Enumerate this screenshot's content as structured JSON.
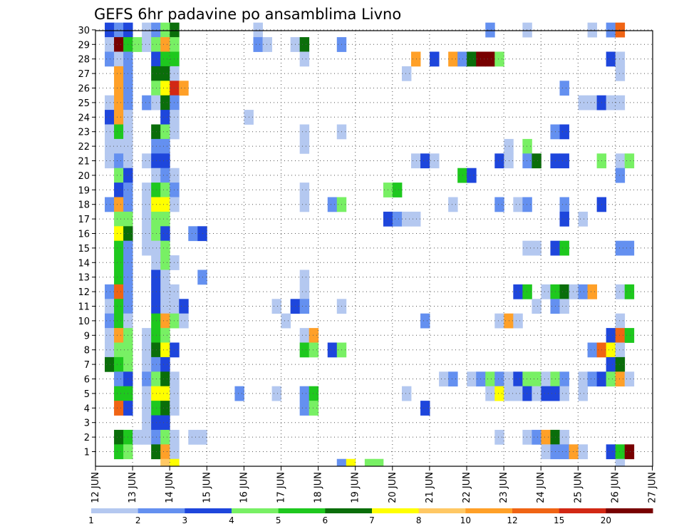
{
  "chart_data": {
    "type": "heatmap",
    "title": "GEFS 6hr padavine po ansamblima Livno",
    "xlabel": "",
    "ylabel": "",
    "x_ticks": [
      "12 JUN",
      "13 JUN",
      "14 JUN",
      "15 JUN",
      "16 JUN",
      "17 JUN",
      "18 JUN",
      "19 JUN",
      "20 JUN",
      "21 JUN",
      "22 JUN",
      "23 JUN",
      "24 JUN",
      "25 JUN",
      "26 JUN",
      "27 JUN"
    ],
    "y_ticks": [
      "1",
      "2",
      "3",
      "4",
      "5",
      "6",
      "7",
      "8",
      "9",
      "10",
      "11",
      "12",
      "13",
      "14",
      "15",
      "16",
      "17",
      "18",
      "19",
      "20",
      "21",
      "22",
      "23",
      "24",
      "25",
      "26",
      "27",
      "28",
      "29",
      "30"
    ],
    "grid": true,
    "legend_placement": "bottom",
    "legend": {
      "labels": [
        "1",
        "2",
        "3",
        "4",
        "5",
        "6",
        "7",
        "8",
        "10",
        "12",
        "15",
        "20"
      ],
      "colors": [
        "#b4c8f0",
        "#6490f0",
        "#1e46dc",
        "#78f064",
        "#1ec81e",
        "#0a6e0a",
        "#ffff00",
        "#ffc864",
        "#ffa028",
        "#f06414",
        "#d22814",
        "#780000"
      ]
    },
    "cells_note": "each cell = [x (6-hour step index from 12 JUN 00Z), y (member 1-30), category index 0-11]",
    "cells": [
      [
        1,
        30,
        2
      ],
      [
        2,
        30,
        1
      ],
      [
        3,
        30,
        2
      ],
      [
        5,
        30,
        0
      ],
      [
        6,
        30,
        1
      ],
      [
        7,
        30,
        3
      ],
      [
        8,
        30,
        5
      ],
      [
        17,
        30,
        0
      ],
      [
        42,
        30,
        1
      ],
      [
        46,
        30,
        0
      ],
      [
        53,
        30,
        0
      ],
      [
        55,
        30,
        1
      ],
      [
        56,
        30,
        9
      ],
      [
        1,
        29,
        0
      ],
      [
        2,
        29,
        11
      ],
      [
        3,
        29,
        4
      ],
      [
        4,
        29,
        3
      ],
      [
        5,
        29,
        0
      ],
      [
        6,
        29,
        3
      ],
      [
        7,
        29,
        8
      ],
      [
        8,
        29,
        3
      ],
      [
        17,
        29,
        1
      ],
      [
        18,
        29,
        0
      ],
      [
        21,
        29,
        0
      ],
      [
        22,
        29,
        5
      ],
      [
        26,
        29,
        1
      ],
      [
        1,
        28,
        1
      ],
      [
        2,
        28,
        0
      ],
      [
        3,
        28,
        1
      ],
      [
        6,
        28,
        2
      ],
      [
        7,
        28,
        4
      ],
      [
        8,
        28,
        4
      ],
      [
        22,
        28,
        0
      ],
      [
        34,
        28,
        8
      ],
      [
        36,
        28,
        2
      ],
      [
        38,
        28,
        8
      ],
      [
        39,
        28,
        1
      ],
      [
        40,
        28,
        5
      ],
      [
        41,
        28,
        11
      ],
      [
        42,
        28,
        11
      ],
      [
        43,
        28,
        3
      ],
      [
        55,
        28,
        2
      ],
      [
        56,
        28,
        0
      ],
      [
        2,
        27,
        8
      ],
      [
        3,
        27,
        1
      ],
      [
        6,
        27,
        5
      ],
      [
        7,
        27,
        5
      ],
      [
        8,
        27,
        0
      ],
      [
        33,
        27,
        0
      ],
      [
        56,
        27,
        0
      ],
      [
        2,
        26,
        8
      ],
      [
        3,
        26,
        1
      ],
      [
        6,
        26,
        3
      ],
      [
        7,
        26,
        6
      ],
      [
        8,
        26,
        10
      ],
      [
        9,
        26,
        8
      ],
      [
        50,
        26,
        1
      ],
      [
        1,
        25,
        0
      ],
      [
        2,
        25,
        8
      ],
      [
        3,
        25,
        1
      ],
      [
        5,
        25,
        1
      ],
      [
        6,
        25,
        0
      ],
      [
        7,
        25,
        5
      ],
      [
        8,
        25,
        1
      ],
      [
        52,
        25,
        0
      ],
      [
        53,
        25,
        0
      ],
      [
        54,
        25,
        2
      ],
      [
        55,
        25,
        0
      ],
      [
        56,
        25,
        0
      ],
      [
        1,
        24,
        2
      ],
      [
        2,
        24,
        8
      ],
      [
        3,
        24,
        0
      ],
      [
        7,
        24,
        2
      ],
      [
        8,
        24,
        0
      ],
      [
        16,
        24,
        0
      ],
      [
        1,
        23,
        0
      ],
      [
        2,
        23,
        4
      ],
      [
        3,
        23,
        0
      ],
      [
        6,
        23,
        5
      ],
      [
        7,
        23,
        3
      ],
      [
        8,
        23,
        0
      ],
      [
        22,
        23,
        0
      ],
      [
        26,
        23,
        0
      ],
      [
        49,
        23,
        1
      ],
      [
        50,
        23,
        2
      ],
      [
        1,
        22,
        0
      ],
      [
        2,
        22,
        0
      ],
      [
        3,
        22,
        0
      ],
      [
        6,
        22,
        1
      ],
      [
        7,
        22,
        1
      ],
      [
        22,
        22,
        0
      ],
      [
        44,
        22,
        0
      ],
      [
        46,
        22,
        3
      ],
      [
        1,
        21,
        0
      ],
      [
        2,
        21,
        1
      ],
      [
        3,
        21,
        0
      ],
      [
        5,
        21,
        0
      ],
      [
        6,
        21,
        2
      ],
      [
        7,
        21,
        2
      ],
      [
        34,
        21,
        0
      ],
      [
        35,
        21,
        2
      ],
      [
        36,
        21,
        0
      ],
      [
        43,
        21,
        2
      ],
      [
        44,
        21,
        0
      ],
      [
        46,
        21,
        1
      ],
      [
        47,
        21,
        5
      ],
      [
        49,
        21,
        2
      ],
      [
        50,
        21,
        2
      ],
      [
        54,
        21,
        3
      ],
      [
        56,
        21,
        0
      ],
      [
        57,
        21,
        3
      ],
      [
        2,
        20,
        3
      ],
      [
        3,
        20,
        2
      ],
      [
        6,
        20,
        0
      ],
      [
        7,
        20,
        1
      ],
      [
        8,
        20,
        0
      ],
      [
        39,
        20,
        4
      ],
      [
        40,
        20,
        2
      ],
      [
        56,
        20,
        1
      ],
      [
        2,
        19,
        2
      ],
      [
        3,
        19,
        1
      ],
      [
        5,
        19,
        0
      ],
      [
        6,
        19,
        4
      ],
      [
        7,
        19,
        3
      ],
      [
        8,
        19,
        1
      ],
      [
        22,
        19,
        0
      ],
      [
        31,
        19,
        3
      ],
      [
        32,
        19,
        4
      ],
      [
        1,
        18,
        1
      ],
      [
        2,
        18,
        8
      ],
      [
        3,
        18,
        1
      ],
      [
        5,
        18,
        0
      ],
      [
        6,
        18,
        6
      ],
      [
        7,
        18,
        6
      ],
      [
        8,
        18,
        0
      ],
      [
        22,
        18,
        0
      ],
      [
        25,
        18,
        1
      ],
      [
        26,
        18,
        3
      ],
      [
        38,
        18,
        0
      ],
      [
        43,
        18,
        1
      ],
      [
        45,
        18,
        0
      ],
      [
        46,
        18,
        1
      ],
      [
        50,
        18,
        1
      ],
      [
        54,
        18,
        2
      ],
      [
        2,
        17,
        3
      ],
      [
        3,
        17,
        3
      ],
      [
        5,
        17,
        0
      ],
      [
        6,
        17,
        3
      ],
      [
        7,
        17,
        3
      ],
      [
        31,
        17,
        2
      ],
      [
        32,
        17,
        1
      ],
      [
        33,
        17,
        0
      ],
      [
        34,
        17,
        0
      ],
      [
        50,
        17,
        2
      ],
      [
        52,
        17,
        0
      ],
      [
        2,
        16,
        6
      ],
      [
        3,
        16,
        5
      ],
      [
        5,
        16,
        0
      ],
      [
        6,
        16,
        3
      ],
      [
        7,
        16,
        2
      ],
      [
        10,
        16,
        1
      ],
      [
        11,
        16,
        2
      ],
      [
        2,
        15,
        4
      ],
      [
        3,
        15,
        1
      ],
      [
        5,
        15,
        0
      ],
      [
        6,
        15,
        0
      ],
      [
        7,
        15,
        3
      ],
      [
        46,
        15,
        0
      ],
      [
        47,
        15,
        0
      ],
      [
        49,
        15,
        2
      ],
      [
        50,
        15,
        4
      ],
      [
        56,
        15,
        1
      ],
      [
        57,
        15,
        1
      ],
      [
        2,
        14,
        4
      ],
      [
        3,
        14,
        1
      ],
      [
        6,
        14,
        0
      ],
      [
        7,
        14,
        3
      ],
      [
        8,
        14,
        0
      ],
      [
        2,
        13,
        4
      ],
      [
        3,
        13,
        1
      ],
      [
        6,
        13,
        2
      ],
      [
        7,
        13,
        0
      ],
      [
        11,
        13,
        1
      ],
      [
        22,
        13,
        0
      ],
      [
        1,
        12,
        1
      ],
      [
        2,
        12,
        9
      ],
      [
        3,
        12,
        1
      ],
      [
        6,
        12,
        2
      ],
      [
        7,
        12,
        0
      ],
      [
        8,
        12,
        0
      ],
      [
        22,
        12,
        0
      ],
      [
        45,
        12,
        2
      ],
      [
        46,
        12,
        4
      ],
      [
        48,
        12,
        0
      ],
      [
        49,
        12,
        4
      ],
      [
        50,
        12,
        5
      ],
      [
        51,
        12,
        0
      ],
      [
        52,
        12,
        1
      ],
      [
        53,
        12,
        8
      ],
      [
        56,
        12,
        0
      ],
      [
        57,
        12,
        4
      ],
      [
        1,
        11,
        0
      ],
      [
        2,
        11,
        4
      ],
      [
        3,
        11,
        1
      ],
      [
        6,
        11,
        2
      ],
      [
        7,
        11,
        0
      ],
      [
        8,
        11,
        0
      ],
      [
        9,
        11,
        2
      ],
      [
        19,
        11,
        0
      ],
      [
        21,
        11,
        2
      ],
      [
        22,
        11,
        1
      ],
      [
        26,
        11,
        0
      ],
      [
        47,
        11,
        0
      ],
      [
        49,
        11,
        1
      ],
      [
        50,
        11,
        0
      ],
      [
        1,
        10,
        1
      ],
      [
        2,
        10,
        4
      ],
      [
        3,
        10,
        0
      ],
      [
        6,
        10,
        4
      ],
      [
        7,
        10,
        8
      ],
      [
        8,
        10,
        3
      ],
      [
        9,
        10,
        0
      ],
      [
        20,
        10,
        0
      ],
      [
        35,
        10,
        1
      ],
      [
        43,
        10,
        0
      ],
      [
        44,
        10,
        8
      ],
      [
        45,
        10,
        0
      ],
      [
        56,
        10,
        0
      ],
      [
        1,
        9,
        0
      ],
      [
        2,
        9,
        8
      ],
      [
        3,
        9,
        3
      ],
      [
        5,
        9,
        0
      ],
      [
        6,
        9,
        4
      ],
      [
        7,
        9,
        3
      ],
      [
        22,
        9,
        0
      ],
      [
        23,
        9,
        8
      ],
      [
        55,
        9,
        2
      ],
      [
        56,
        9,
        9
      ],
      [
        57,
        9,
        4
      ],
      [
        1,
        8,
        0
      ],
      [
        2,
        8,
        3
      ],
      [
        3,
        8,
        3
      ],
      [
        5,
        8,
        0
      ],
      [
        6,
        8,
        5
      ],
      [
        7,
        8,
        6
      ],
      [
        8,
        8,
        2
      ],
      [
        22,
        8,
        4
      ],
      [
        23,
        8,
        3
      ],
      [
        25,
        8,
        2
      ],
      [
        26,
        8,
        3
      ],
      [
        53,
        8,
        1
      ],
      [
        54,
        8,
        9
      ],
      [
        55,
        8,
        6
      ],
      [
        56,
        8,
        0
      ],
      [
        1,
        7,
        5
      ],
      [
        2,
        7,
        4
      ],
      [
        3,
        7,
        3
      ],
      [
        5,
        7,
        0
      ],
      [
        6,
        7,
        1
      ],
      [
        7,
        7,
        2
      ],
      [
        55,
        7,
        2
      ],
      [
        56,
        7,
        5
      ],
      [
        2,
        6,
        1
      ],
      [
        3,
        6,
        2
      ],
      [
        5,
        6,
        1
      ],
      [
        6,
        6,
        3
      ],
      [
        7,
        6,
        5
      ],
      [
        8,
        6,
        0
      ],
      [
        37,
        6,
        0
      ],
      [
        38,
        6,
        1
      ],
      [
        40,
        6,
        0
      ],
      [
        41,
        6,
        1
      ],
      [
        42,
        6,
        3
      ],
      [
        43,
        6,
        1
      ],
      [
        44,
        6,
        0
      ],
      [
        45,
        6,
        2
      ],
      [
        46,
        6,
        3
      ],
      [
        47,
        6,
        3
      ],
      [
        48,
        6,
        0
      ],
      [
        49,
        6,
        3
      ],
      [
        50,
        6,
        1
      ],
      [
        52,
        6,
        0
      ],
      [
        53,
        6,
        1
      ],
      [
        54,
        6,
        2
      ],
      [
        55,
        6,
        3
      ],
      [
        56,
        6,
        8
      ],
      [
        57,
        6,
        0
      ],
      [
        2,
        5,
        4
      ],
      [
        3,
        5,
        4
      ],
      [
        5,
        5,
        0
      ],
      [
        6,
        5,
        6
      ],
      [
        7,
        5,
        6
      ],
      [
        8,
        5,
        0
      ],
      [
        15,
        5,
        1
      ],
      [
        19,
        5,
        0
      ],
      [
        22,
        5,
        1
      ],
      [
        23,
        5,
        4
      ],
      [
        33,
        5,
        0
      ],
      [
        42,
        5,
        0
      ],
      [
        43,
        5,
        6
      ],
      [
        44,
        5,
        0
      ],
      [
        45,
        5,
        0
      ],
      [
        46,
        5,
        2
      ],
      [
        47,
        5,
        0
      ],
      [
        48,
        5,
        2
      ],
      [
        49,
        5,
        2
      ],
      [
        50,
        5,
        0
      ],
      [
        52,
        5,
        0
      ],
      [
        2,
        4,
        9
      ],
      [
        3,
        4,
        2
      ],
      [
        5,
        4,
        0
      ],
      [
        6,
        4,
        4
      ],
      [
        7,
        4,
        5
      ],
      [
        8,
        4,
        0
      ],
      [
        22,
        4,
        1
      ],
      [
        23,
        4,
        3
      ],
      [
        35,
        4,
        2
      ],
      [
        5,
        3,
        0
      ],
      [
        6,
        3,
        2
      ],
      [
        7,
        3,
        2
      ],
      [
        2,
        2,
        5
      ],
      [
        3,
        2,
        4
      ],
      [
        4,
        2,
        0
      ],
      [
        5,
        2,
        0
      ],
      [
        6,
        2,
        1
      ],
      [
        7,
        2,
        3
      ],
      [
        8,
        2,
        0
      ],
      [
        10,
        2,
        0
      ],
      [
        11,
        2,
        0
      ],
      [
        43,
        2,
        0
      ],
      [
        46,
        2,
        0
      ],
      [
        47,
        2,
        1
      ],
      [
        48,
        2,
        8
      ],
      [
        49,
        2,
        5
      ],
      [
        50,
        2,
        0
      ],
      [
        2,
        1,
        4
      ],
      [
        3,
        1,
        3
      ],
      [
        6,
        1,
        5
      ],
      [
        7,
        1,
        8
      ],
      [
        8,
        1,
        0
      ],
      [
        48,
        1,
        0
      ],
      [
        49,
        1,
        1
      ],
      [
        50,
        1,
        1
      ],
      [
        51,
        1,
        8
      ],
      [
        52,
        1,
        0
      ],
      [
        55,
        1,
        2
      ],
      [
        56,
        1,
        4
      ],
      [
        57,
        1,
        11
      ],
      [
        7,
        0,
        7
      ],
      [
        8,
        0,
        6
      ],
      [
        26,
        0,
        1
      ],
      [
        27,
        0,
        6
      ],
      [
        29,
        0,
        3
      ],
      [
        30,
        0,
        3
      ],
      [
        56,
        0,
        0
      ]
    ]
  }
}
